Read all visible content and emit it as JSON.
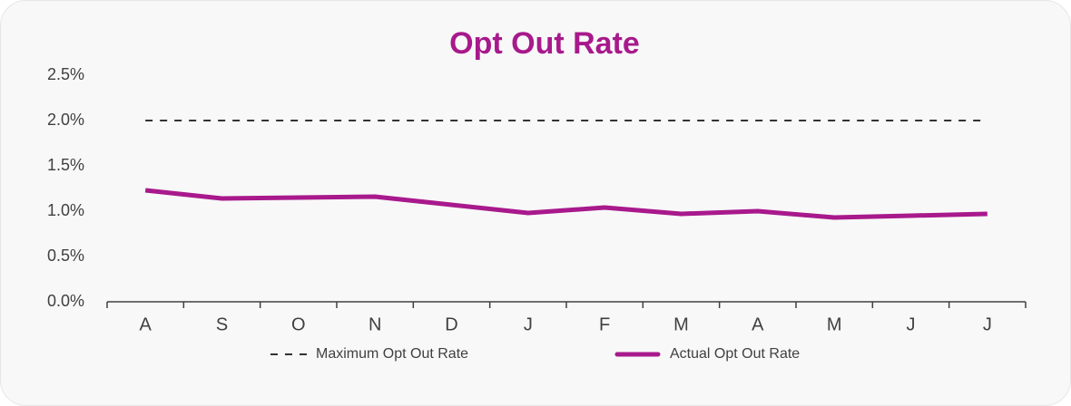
{
  "chart_data": {
    "type": "line",
    "title": "Opt Out Rate",
    "categories": [
      "A",
      "S",
      "O",
      "N",
      "D",
      "J",
      "F",
      "M",
      "A",
      "M",
      "J",
      "J"
    ],
    "series": [
      {
        "name": "Maximum Opt Out Rate",
        "color": "#333333",
        "line_style": "dashed",
        "values": [
          2.0,
          2.0,
          2.0,
          2.0,
          2.0,
          2.0,
          2.0,
          2.0,
          2.0,
          2.0,
          2.0,
          2.0
        ]
      },
      {
        "name": "Actual Opt Out Rate",
        "color": "#a8198c",
        "line_style": "solid",
        "values": [
          1.23,
          1.14,
          1.15,
          1.16,
          1.07,
          0.98,
          1.04,
          0.97,
          1.0,
          0.93,
          0.95,
          0.97
        ]
      }
    ],
    "ylim": [
      0,
      2.5
    ],
    "yticks": [
      {
        "value": 0,
        "label": "0.0%"
      },
      {
        "value": 0.5,
        "label": "0.5%"
      },
      {
        "value": 1.0,
        "label": "1.0%"
      },
      {
        "value": 1.5,
        "label": "1.5%"
      },
      {
        "value": 2.0,
        "label": "2.0%"
      },
      {
        "value": 2.5,
        "label": "2.5%"
      }
    ],
    "grid": false,
    "legend": "bottom"
  }
}
